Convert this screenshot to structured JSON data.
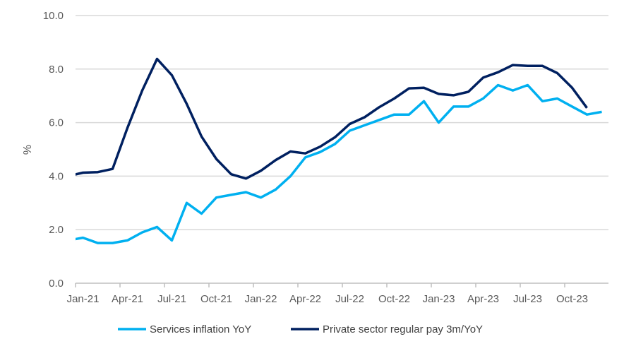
{
  "chart_data": {
    "type": "line",
    "title": "",
    "xlabel": "",
    "ylabel": "%",
    "ylim": [
      0,
      10
    ],
    "yticks": [
      "0.0",
      "2.0",
      "4.0",
      "6.0",
      "8.0",
      "10.0"
    ],
    "grid": true,
    "legend_position": "bottom",
    "x": [
      "Dec-20",
      "Jan-21",
      "Feb-21",
      "Mar-21",
      "Apr-21",
      "May-21",
      "Jun-21",
      "Jul-21",
      "Aug-21",
      "Sep-21",
      "Oct-21",
      "Nov-21",
      "Dec-21",
      "Jan-22",
      "Feb-22",
      "Mar-22",
      "Apr-22",
      "May-22",
      "Jun-22",
      "Jul-22",
      "Aug-22",
      "Sep-22",
      "Oct-22",
      "Nov-22",
      "Dec-22",
      "Jan-23",
      "Feb-23",
      "Mar-23",
      "Apr-23",
      "May-23",
      "Jun-23",
      "Jul-23",
      "Aug-23",
      "Sep-23",
      "Oct-23",
      "Nov-23",
      "Dec-23"
    ],
    "xtick_labels": [
      "Jan-21",
      "Apr-21",
      "Jul-21",
      "Oct-21",
      "Jan-22",
      "Apr-22",
      "Jul-22",
      "Oct-22",
      "Jan-23",
      "Apr-23",
      "Jul-23",
      "Oct-23"
    ],
    "series": [
      {
        "name": "Services inflation YoY",
        "color": "#00B0F0",
        "values": [
          1.6,
          1.7,
          1.5,
          1.5,
          1.6,
          1.9,
          2.1,
          1.6,
          3.0,
          2.6,
          3.2,
          3.3,
          3.4,
          3.2,
          3.5,
          4.0,
          4.7,
          4.9,
          5.2,
          5.7,
          5.9,
          6.1,
          6.3,
          6.3,
          6.8,
          6.0,
          6.6,
          6.6,
          6.9,
          7.4,
          7.2,
          7.4,
          6.8,
          6.9,
          6.6,
          6.3,
          6.4
        ]
      },
      {
        "name": "Private sector regular pay 3m/YoY",
        "color": "#002060",
        "values": [
          4.0,
          4.13,
          4.15,
          4.27,
          5.8,
          7.2,
          8.38,
          7.77,
          6.7,
          5.48,
          4.64,
          4.07,
          3.91,
          4.2,
          4.6,
          4.92,
          4.85,
          5.1,
          5.45,
          5.95,
          6.2,
          6.58,
          6.9,
          7.28,
          7.3,
          7.07,
          7.02,
          7.15,
          7.68,
          7.88,
          8.15,
          8.12,
          8.12,
          7.85,
          7.3,
          6.55,
          null
        ]
      }
    ]
  }
}
